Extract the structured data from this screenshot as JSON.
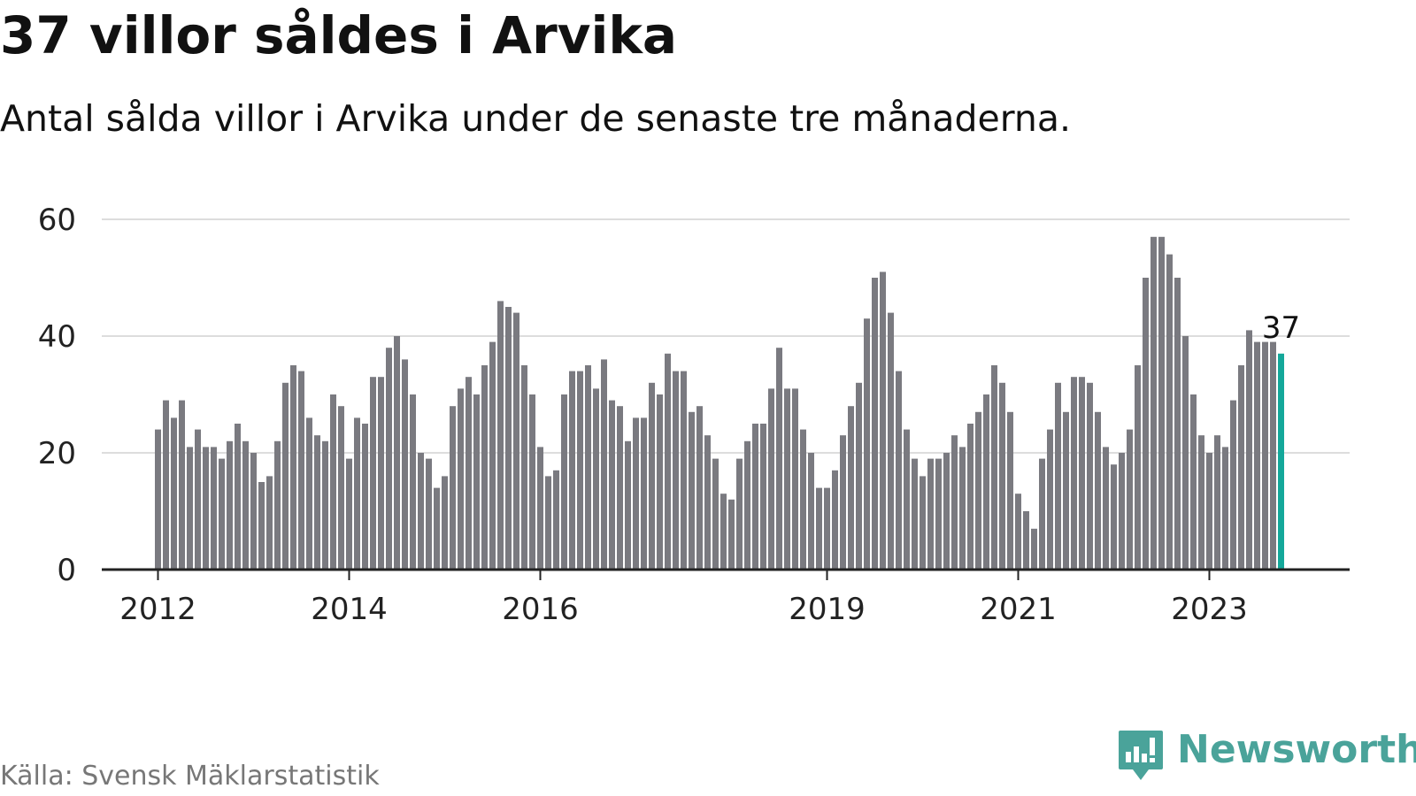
{
  "title": "37 villor såldes i Arvika",
  "subtitle": "Antal sålda villor i Arvika under de senaste tre månaderna.",
  "source": "Källa: Svensk Mäklarstatistik",
  "brand": {
    "name": "Newsworthy",
    "icon": "newsworthy-logo-icon",
    "color": "#4aa39a"
  },
  "colors": {
    "bar": "#7a7a80",
    "highlight": "#14a89a",
    "grid": "#dddddd",
    "axis": "#222222"
  },
  "chart_data": {
    "type": "bar",
    "ylim": [
      0,
      60
    ],
    "y_ticks": [
      0,
      20,
      40,
      60
    ],
    "x_tick_labels": [
      {
        "label": "2012",
        "index": 0
      },
      {
        "label": "2014",
        "index": 24
      },
      {
        "label": "2016",
        "index": 48
      },
      {
        "label": "2019",
        "index": 84
      },
      {
        "label": "2021",
        "index": 108
      },
      {
        "label": "2023",
        "index": 132
      }
    ],
    "values": [
      24,
      29,
      26,
      29,
      21,
      24,
      21,
      21,
      19,
      22,
      25,
      22,
      20,
      15,
      16,
      22,
      32,
      35,
      34,
      26,
      23,
      22,
      30,
      28,
      19,
      26,
      25,
      33,
      33,
      38,
      40,
      36,
      30,
      20,
      19,
      14,
      16,
      28,
      31,
      33,
      30,
      35,
      39,
      46,
      45,
      44,
      35,
      30,
      21,
      16,
      17,
      30,
      34,
      34,
      35,
      31,
      36,
      29,
      28,
      22,
      26,
      26,
      32,
      30,
      37,
      34,
      34,
      27,
      28,
      23,
      19,
      13,
      12,
      19,
      22,
      25,
      25,
      31,
      38,
      31,
      31,
      24,
      20,
      14,
      14,
      17,
      23,
      28,
      32,
      43,
      50,
      51,
      44,
      34,
      24,
      19,
      16,
      19,
      19,
      20,
      23,
      21,
      25,
      27,
      30,
      35,
      32,
      27,
      13,
      10,
      7,
      19,
      24,
      32,
      27,
      33,
      33,
      32,
      27,
      21,
      18,
      20,
      24,
      35,
      50,
      57,
      57,
      54,
      50,
      40,
      30,
      23,
      20,
      23,
      21,
      29,
      35,
      41,
      39,
      39,
      39,
      37
    ],
    "highlight_index": 141,
    "highlight_label": "37",
    "grid": true
  }
}
